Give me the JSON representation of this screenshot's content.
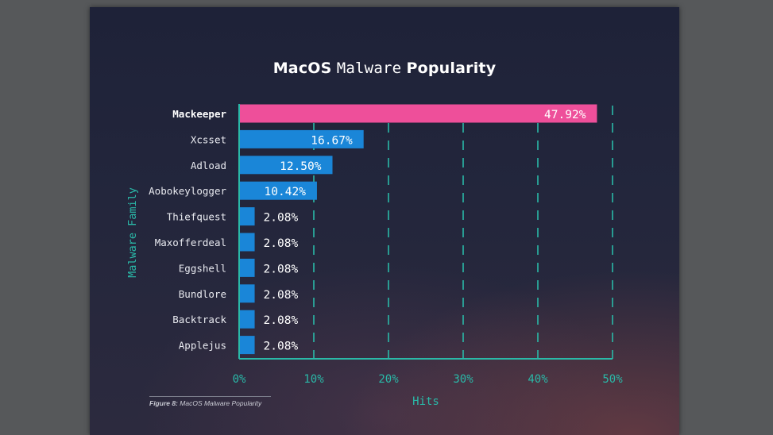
{
  "title": {
    "part1": "MacOS",
    "part2": "Malware",
    "part3": "Popularity"
  },
  "caption": {
    "figure": "Figure 8:",
    "text": "MacOS Malware Popularity"
  },
  "colors": {
    "highlight": "#ee4f9a",
    "bar": "#1a86d8",
    "axis": "#2ab9a8",
    "grid": "#2ab9a8",
    "label_highlight": "#ffffff",
    "label": "#e9eaf0"
  },
  "chart_data": {
    "type": "bar",
    "orientation": "horizontal",
    "title": "MacOS Malware Popularity",
    "xlabel": "Hits",
    "ylabel": "Malware Family",
    "xlim": [
      0,
      50
    ],
    "xticks": [
      "0%",
      "10%",
      "20%",
      "30%",
      "40%",
      "50%"
    ],
    "xtick_values": [
      0,
      10,
      20,
      30,
      40,
      50
    ],
    "grid": "vertical dashed",
    "categories": [
      "Mackeeper",
      "Xcsset",
      "Adload",
      "Aobokeylogger",
      "Thiefquest",
      "Maxofferdeal",
      "Eggshell",
      "Bundlore",
      "Backtrack",
      "Applejus"
    ],
    "values": [
      47.92,
      16.67,
      12.5,
      10.42,
      2.08,
      2.08,
      2.08,
      2.08,
      2.08,
      2.08
    ],
    "value_labels": [
      "47.92%",
      "16.67%",
      "12.50%",
      "10.42%",
      "2.08%",
      "2.08%",
      "2.08%",
      "2.08%",
      "2.08%",
      "2.08%"
    ],
    "highlighted_category": "Mackeeper"
  }
}
